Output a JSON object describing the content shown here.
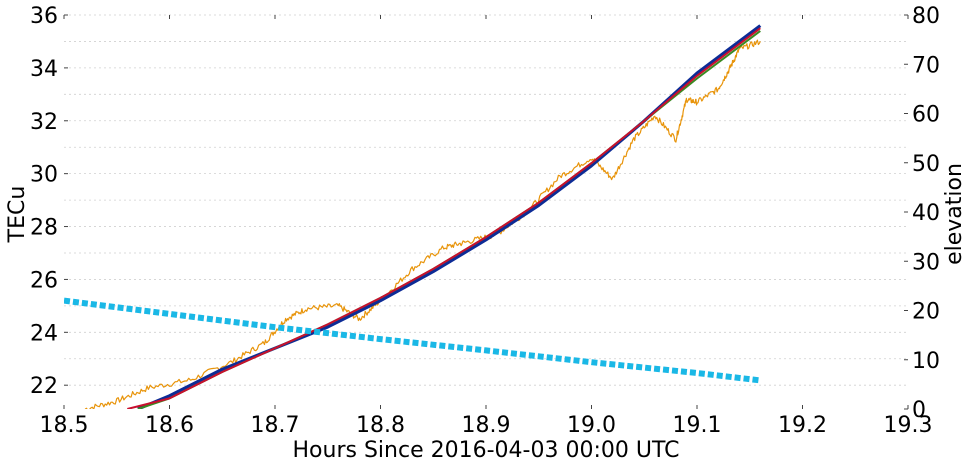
{
  "chart_data": {
    "type": "line",
    "xlabel": "Hours Since 2016-04-03 00:00 UTC",
    "ylabel": "TECu",
    "y2label": "elevation",
    "xlim": [
      18.5,
      19.3
    ],
    "ylim": [
      21.1,
      36
    ],
    "y2lim": [
      0,
      80
    ],
    "xticks": [
      "18.5",
      "18.6",
      "18.7",
      "18.8",
      "18.9",
      "19.0",
      "19.1",
      "19.2",
      "19.3"
    ],
    "yticks": [
      "22",
      "24",
      "26",
      "28",
      "30",
      "32",
      "34",
      "36"
    ],
    "y2ticks": [
      "0",
      "10",
      "20",
      "30",
      "40",
      "50",
      "60",
      "70",
      "80"
    ],
    "grid": "horizontal dotted",
    "series": [
      {
        "color": "#e8940a",
        "axis": "left",
        "style": "thin noisy line",
        "x": [
          18.52,
          18.55,
          18.58,
          18.62,
          18.66,
          18.69,
          18.71,
          18.73,
          18.76,
          18.78,
          18.8,
          18.83,
          18.86,
          18.88,
          18.91,
          18.94,
          18.97,
          19.0,
          19.02,
          19.04,
          19.06,
          19.08,
          19.09,
          19.1,
          19.12,
          19.13,
          19.14,
          19.16
        ],
        "values": [
          21.1,
          21.4,
          21.9,
          22.2,
          22.9,
          23.6,
          24.5,
          24.9,
          25.0,
          24.5,
          25.2,
          26.4,
          27.2,
          27.4,
          27.7,
          28.6,
          29.9,
          30.6,
          29.8,
          31.3,
          32.2,
          31.3,
          32.8,
          32.7,
          33.2,
          33.9,
          34.7,
          35.0
        ]
      },
      {
        "color": "#0d2c96",
        "axis": "left",
        "style": "thick line",
        "x": [
          18.57,
          18.6,
          18.65,
          18.7,
          18.75,
          18.8,
          18.85,
          18.9,
          18.95,
          19.0,
          19.05,
          19.1,
          19.16
        ],
        "values": [
          21.1,
          21.6,
          22.6,
          23.4,
          24.2,
          25.2,
          26.3,
          27.5,
          28.8,
          30.3,
          32.0,
          33.8,
          35.6
        ]
      },
      {
        "color": "#3a8a22",
        "axis": "left",
        "style": "line",
        "x": [
          18.57,
          18.6,
          18.65,
          18.7,
          18.75,
          18.8,
          18.85,
          18.9,
          18.95,
          19.0,
          19.05,
          19.1,
          19.16
        ],
        "values": [
          21.1,
          21.5,
          22.5,
          23.4,
          24.3,
          25.3,
          26.4,
          27.6,
          28.9,
          30.4,
          32.0,
          33.6,
          35.4
        ]
      },
      {
        "color": "#c8102e",
        "axis": "left",
        "style": "line",
        "x": [
          18.56,
          18.6,
          18.65,
          18.7,
          18.75,
          18.8,
          18.85,
          18.9,
          18.95,
          19.0,
          19.05,
          19.1,
          19.16
        ],
        "values": [
          21.1,
          21.5,
          22.5,
          23.4,
          24.3,
          25.3,
          26.4,
          27.6,
          28.9,
          30.4,
          32.0,
          33.7,
          35.5
        ]
      },
      {
        "color": "#1ab8e6",
        "axis": "right",
        "style": "thick dotted line",
        "x": [
          18.5,
          18.6,
          18.7,
          18.8,
          18.9,
          19.0,
          19.1,
          19.16
        ],
        "values": [
          22.0,
          19.3,
          16.6,
          14.2,
          11.9,
          9.5,
          7.3,
          5.8
        ]
      }
    ]
  }
}
